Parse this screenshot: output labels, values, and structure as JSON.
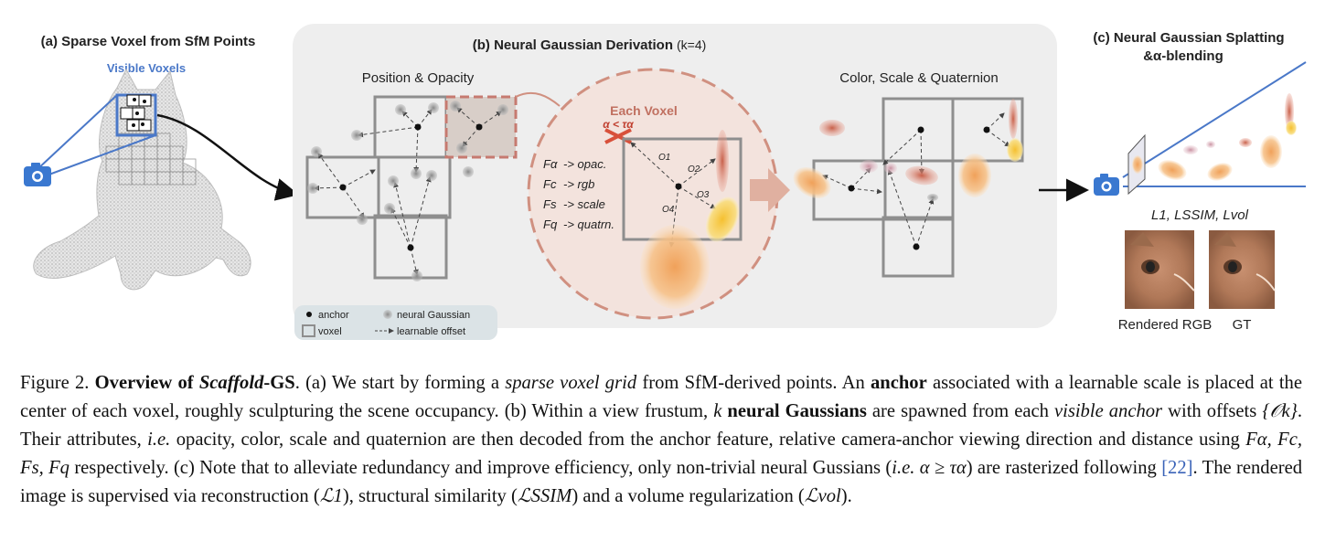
{
  "panel_a": {
    "title": "(a) Sparse Voxel from SfM Points",
    "visible_voxels": "Visible Voxels",
    "colors": {
      "voxel_highlight": "#4a78c8",
      "camera": "#3a78d0"
    },
    "icons": [
      "camera-icon",
      "cat-point-cloud"
    ]
  },
  "panel_b": {
    "title": "(b) Neural Gaussian Derivation",
    "title_suffix": "(k=4)",
    "position_opacity": "Position & Opacity",
    "color_scale_quat": "Color, Scale & Quaternion",
    "each_voxel": "Each Voxel",
    "alpha_condition": "α < τα",
    "feature_map": [
      {
        "sym": "Fα",
        "text": "-> opac."
      },
      {
        "sym": "Fc",
        "text": "-> rgb"
      },
      {
        "sym": "Fs",
        "text": "-> scale"
      },
      {
        "sym": "Fq",
        "text": "-> quatrn."
      }
    ],
    "offsets": [
      "O1",
      "O2",
      "O3",
      "O4"
    ],
    "legend": {
      "anchor": "anchor",
      "neural_gaussian": "neural Gaussian",
      "voxel": "voxel",
      "learnable_offset": "learnable offset"
    }
  },
  "panel_c": {
    "title_line1": "(c) Neural Gaussian Splatting",
    "title_line2": "&α-blending",
    "losses": "L1, LSSIM, Lvol",
    "rendered_label": "Rendered RGB",
    "gt_label": "GT"
  },
  "caption": {
    "fig": "Figure 2.",
    "bold_title": "Overview of",
    "bold_title_it": "Scaffold",
    "bold_title_end": "-GS",
    "s1": ". (a) We start by forming a",
    "s1_it": "sparse voxel grid",
    "s2": "from SfM-derived points. An",
    "s2_b": "anchor",
    "s3": "associated with a learnable scale is placed at the center of each voxel, roughly sculpturing the scene occupancy. (b) Within a view frustum,",
    "k": "k",
    "s4_b": "neural Gaussians",
    "s5": "are spawned from each",
    "s5_it": "visible anchor",
    "s6": "with offsets",
    "ok": "{𝒪k}",
    "s7": ". Their attributes,",
    "ie1": "i.e.",
    "s8": "opacity, color, scale and quaternion are then decoded from the anchor feature, relative camera-anchor viewing direction and distance using",
    "fs": "Fα, Fc, Fs, Fq",
    "s9": "respectively. (c) Note that to alleviate redundancy and improve efficiency, only non-trivial neural Gussians (",
    "ie2": "i.e.",
    "cond": "α ≥ τα",
    "s10": ") are rasterized following",
    "ref": "[22]",
    "s11": ". The rendered image is supervised via reconstruction (",
    "l1": "ℒ1",
    "s12": "), structural similarity (",
    "lssim": "ℒSSIM",
    "s13": ") and a volume regularization (",
    "lvol": "ℒvol",
    "s14": ")."
  }
}
